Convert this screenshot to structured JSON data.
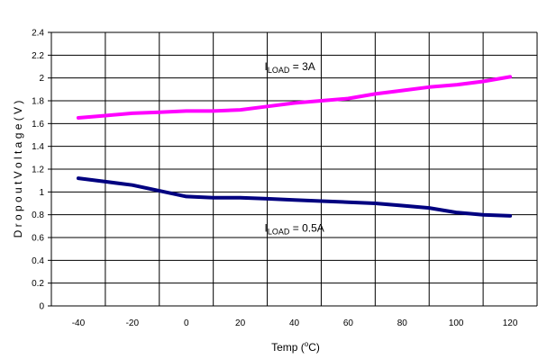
{
  "chart_data": {
    "type": "line",
    "xlabel_main": "Temp (",
    "xlabel_sup": "o",
    "xlabel_end": "C)",
    "ylabel": "D r o p o u t   V o l t a g e   ( V )",
    "xlim": [
      -50,
      130
    ],
    "ylim": [
      0,
      2.4
    ],
    "x_ticks": [
      -40,
      -20,
      0,
      20,
      40,
      60,
      80,
      100,
      120
    ],
    "y_ticks": [
      0,
      0.2,
      0.4,
      0.6,
      0.8,
      1,
      1.2,
      1.4,
      1.6,
      1.8,
      2,
      2.2,
      2.4
    ],
    "x_tick_labels": [
      "-40",
      "-20",
      "0",
      "20",
      "40",
      "60",
      "80",
      "100",
      "120"
    ],
    "y_tick_labels": [
      "0",
      "0.2",
      "0.4",
      "0.6",
      "0.8",
      "1",
      "1.2",
      "1.4",
      "1.6",
      "1.8",
      "2",
      "2.2",
      "2.4"
    ],
    "grid": true,
    "series": [
      {
        "color": "#ff00ff",
        "x": [
          -40,
          -30,
          -20,
          -10,
          0,
          10,
          20,
          30,
          40,
          50,
          60,
          70,
          80,
          90,
          100,
          110,
          120
        ],
        "values": [
          1.65,
          1.67,
          1.69,
          1.7,
          1.71,
          1.71,
          1.72,
          1.75,
          1.78,
          1.8,
          1.82,
          1.86,
          1.89,
          1.92,
          1.94,
          1.97,
          2.01
        ]
      },
      {
        "color": "#000080",
        "x": [
          -40,
          -30,
          -20,
          -10,
          0,
          10,
          20,
          30,
          40,
          50,
          60,
          70,
          80,
          90,
          100,
          110,
          120
        ],
        "values": [
          1.12,
          1.09,
          1.06,
          1.01,
          0.96,
          0.95,
          0.95,
          0.94,
          0.93,
          0.92,
          0.91,
          0.9,
          0.88,
          0.86,
          0.82,
          0.8,
          0.79
        ]
      }
    ],
    "annotations": [
      {
        "main": "I",
        "sub": "LOAD",
        "rest": " = 3A",
        "x": 30,
        "y": 2.07
      },
      {
        "main": "I",
        "sub": "LOAD",
        "rest": " = 0.5A",
        "x": 30,
        "y": 0.65
      }
    ]
  }
}
